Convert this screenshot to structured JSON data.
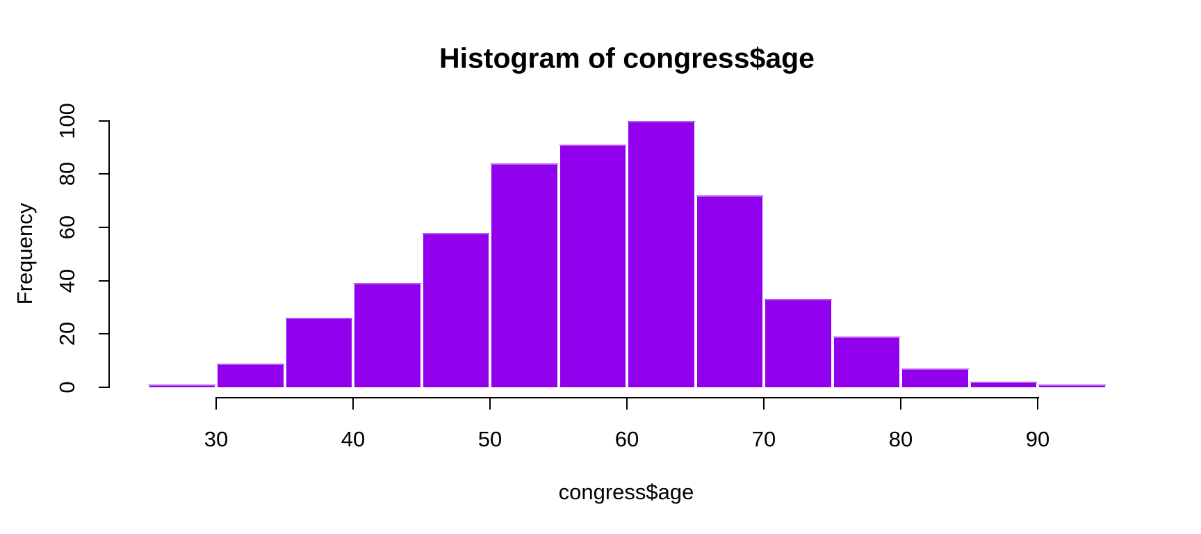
{
  "chart_data": {
    "type": "bar",
    "subtype": "histogram",
    "title": "Histogram of congress$age",
    "xlabel": "congress$age",
    "ylabel": "Frequency",
    "bin_edges": [
      25,
      30,
      35,
      40,
      45,
      50,
      55,
      60,
      65,
      70,
      75,
      80,
      85,
      90,
      95
    ],
    "counts": [
      1,
      9,
      26,
      39,
      58,
      84,
      91,
      100,
      72,
      33,
      19,
      7,
      2,
      1
    ],
    "x_ticks": [
      30,
      40,
      50,
      60,
      70,
      80,
      90
    ],
    "y_ticks": [
      0,
      20,
      40,
      60,
      80,
      100
    ],
    "xlim": [
      25,
      95
    ],
    "ylim": [
      0,
      100
    ],
    "grid": "off",
    "legend": "none",
    "bar_fill": "#9100EC",
    "bar_border": "#FFFFFF",
    "bar_edge_highlight": "#B55CF2",
    "axis_color": "#000000",
    "text_color": "#000000",
    "background": "#FFFFFF"
  }
}
